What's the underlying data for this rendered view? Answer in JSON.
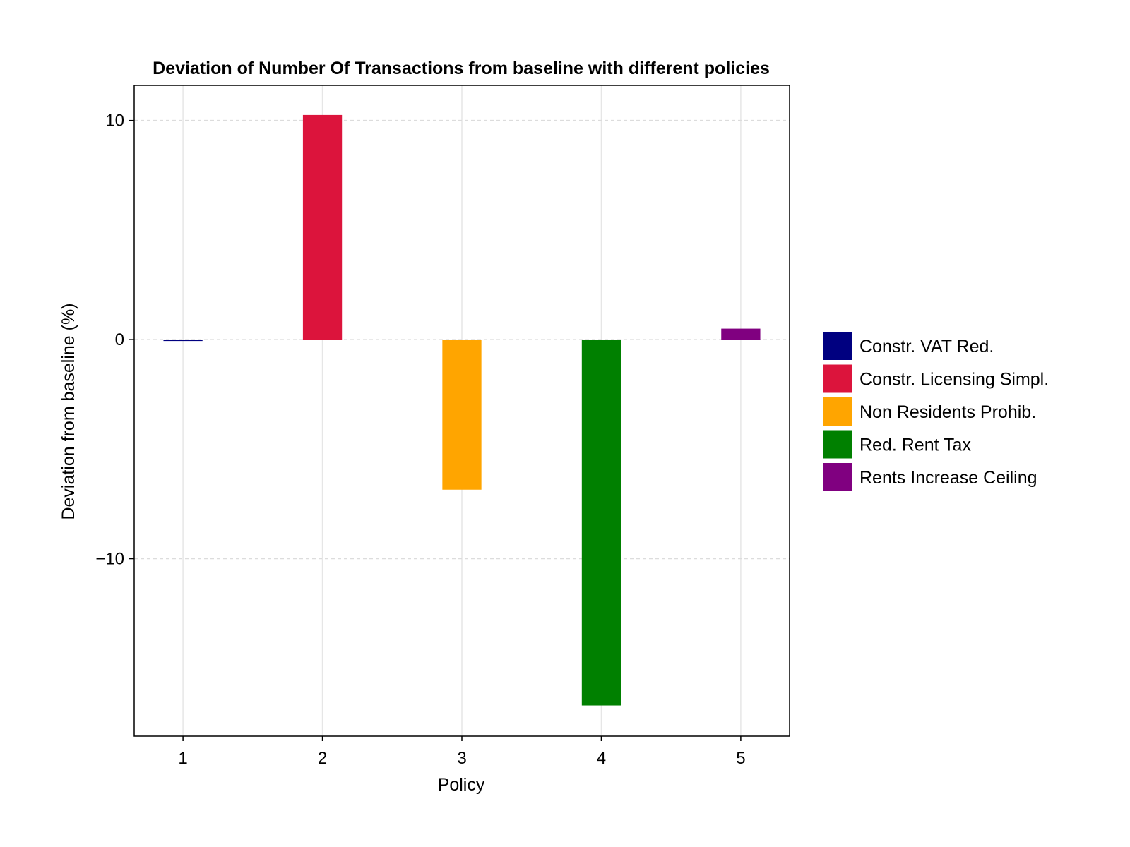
{
  "chart_data": {
    "type": "bar",
    "title": "Deviation of Number Of Transactions from baseline with different policies",
    "xlabel": "Policy",
    "ylabel": "Deviation from baseline (%)",
    "categories": [
      "1",
      "2",
      "3",
      "4",
      "5"
    ],
    "values": [
      -0.05,
      10.25,
      -6.85,
      -16.7,
      0.5
    ],
    "series_names": [
      "Constr. VAT Red.",
      "Constr. Licensing Simpl.",
      "Non Residents Prohib.",
      "Red. Rent Tax",
      "Rents Increase Ceiling"
    ],
    "colors": [
      "#000080",
      "#dc143c",
      "#ffa500",
      "#008000",
      "#800080"
    ],
    "xlim": [
      0.65,
      5.35
    ],
    "ylim": [
      -18.1,
      11.6
    ],
    "yticks": [
      10,
      0,
      -10
    ],
    "ytick_labels": [
      "10",
      "0",
      "−10"
    ],
    "bar_width": 0.28,
    "grid": true,
    "legend_position": "right"
  }
}
